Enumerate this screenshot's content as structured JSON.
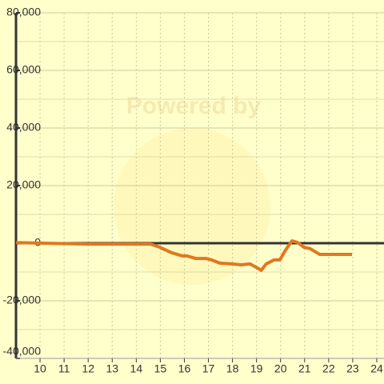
{
  "chart_data": {
    "type": "line",
    "watermark": "Powered by",
    "x": [
      9.0,
      11.97,
      14.6,
      14.97,
      15.47,
      15.9,
      16.1,
      16.47,
      16.9,
      17.13,
      17.47,
      17.97,
      18.37,
      18.73,
      18.97,
      19.2,
      19.4,
      19.73,
      19.97,
      20.2,
      20.47,
      20.7,
      20.97,
      21.23,
      21.63,
      21.97,
      22.97
    ],
    "series": [
      {
        "color": "#e07820",
        "values": [
          200,
          -300,
          -300,
          -1400,
          -3300,
          -4400,
          -4400,
          -5300,
          -5300,
          -5800,
          -6900,
          -7200,
          -7500,
          -7200,
          -8300,
          -9400,
          -7200,
          -5800,
          -5800,
          -2500,
          800,
          300,
          -1400,
          -1900,
          -3900,
          -3900,
          -3900
        ]
      }
    ],
    "xlim": [
      9,
      24.3
    ],
    "ylim": [
      -40000,
      80000
    ],
    "xticks": [
      10,
      11,
      12,
      13,
      14,
      15,
      16,
      17,
      18,
      19,
      20,
      21,
      22,
      23,
      24
    ],
    "yticks": [
      {
        "value": -40000,
        "label": "-40,000"
      },
      {
        "value": -20000,
        "label": "-20,000"
      },
      {
        "value": 0,
        "label": "0"
      },
      {
        "value": 20000,
        "label": "20,000"
      },
      {
        "value": 40000,
        "label": "40,000"
      },
      {
        "value": 60000,
        "label": "60,000"
      },
      {
        "value": 80000,
        "label": "80,000"
      }
    ],
    "grid": true
  }
}
